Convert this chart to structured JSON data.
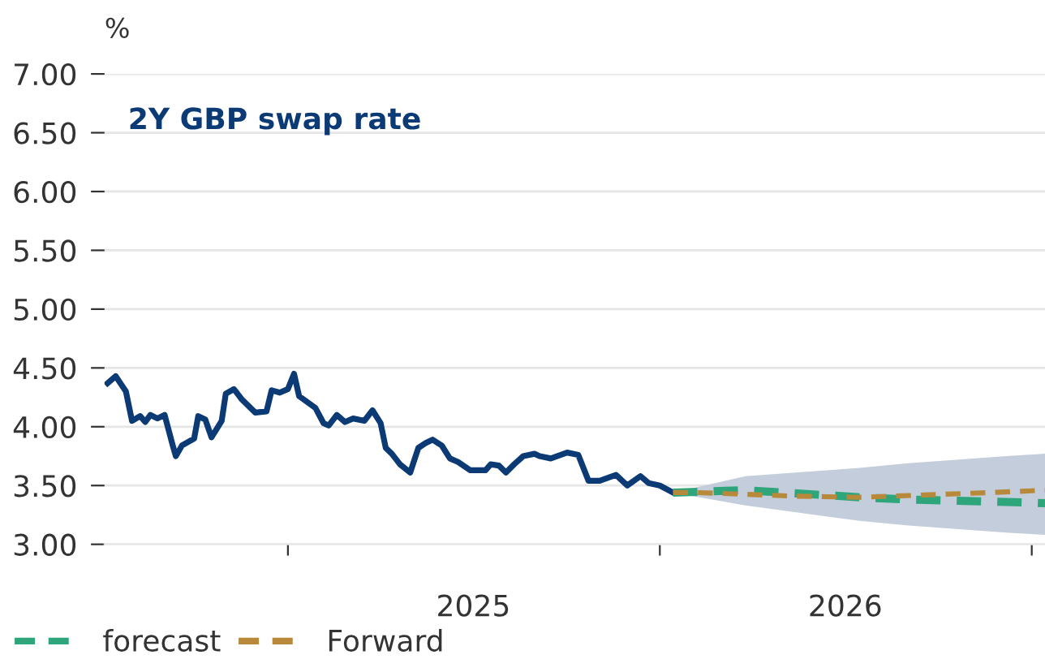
{
  "chart_data": {
    "type": "line",
    "title": "2Y GBP swap rate",
    "ylabel": "%",
    "xlim": [
      "2024-07-05",
      "2027-01-14"
    ],
    "xticks": [
      {
        "value": "2025-01-01",
        "label": null
      },
      {
        "value": "2025-07-02",
        "label": "2025"
      },
      {
        "value": "2026-01-01",
        "label": null
      },
      {
        "value": "2026-07-02",
        "label": "2026"
      },
      {
        "value": "2027-01-01",
        "label": null
      }
    ],
    "ylim": [
      3.0,
      7.0
    ],
    "yticks": [
      {
        "value": 3.0,
        "label": "3.00"
      },
      {
        "value": 3.5,
        "label": "3.50"
      },
      {
        "value": 4.0,
        "label": "4.00"
      },
      {
        "value": 4.5,
        "label": "4.50"
      },
      {
        "value": 5.0,
        "label": "5.00"
      },
      {
        "value": 5.5,
        "label": "5.50"
      },
      {
        "value": 6.0,
        "label": "6.00"
      },
      {
        "value": 6.5,
        "label": "6.50"
      },
      {
        "value": 7.0,
        "label": "7.00"
      }
    ],
    "grid": "y",
    "legend": "bottom",
    "marker": "none",
    "series": [
      {
        "color": "#0b3a75",
        "line_style": "solid",
        "x": [
          "2024-07-08",
          "2024-07-16",
          "2024-07-26",
          "2024-08-01",
          "2024-08-09",
          "2024-08-14",
          "2024-08-19",
          "2024-08-26",
          "2024-09-02",
          "2024-09-10",
          "2024-09-13",
          "2024-09-19",
          "2024-10-01",
          "2024-10-05",
          "2024-10-12",
          "2024-10-18",
          "2024-10-28",
          "2024-11-01",
          "2024-11-09",
          "2024-11-17",
          "2024-11-30",
          "2024-12-11",
          "2024-12-16",
          "2024-12-24",
          "2025-01-01",
          "2025-01-07",
          "2025-01-12",
          "2025-01-28",
          "2025-02-05",
          "2025-02-10",
          "2025-02-18",
          "2025-02-26",
          "2025-03-06",
          "2025-03-17",
          "2025-03-25",
          "2025-04-02",
          "2025-04-07",
          "2025-04-13",
          "2025-04-21",
          "2025-05-01",
          "2025-05-09",
          "2025-05-16",
          "2025-05-23",
          "2025-06-01",
          "2025-06-09",
          "2025-06-17",
          "2025-06-29",
          "2025-07-14",
          "2025-07-19",
          "2025-07-27",
          "2025-08-03",
          "2025-08-11",
          "2025-08-20",
          "2025-08-31",
          "2025-09-05",
          "2025-09-16",
          "2025-10-02",
          "2025-10-13",
          "2025-10-23",
          "2025-11-03",
          "2025-11-19",
          "2025-11-30",
          "2025-12-13",
          "2025-12-21",
          "2026-01-01",
          "2026-01-14"
        ],
        "values": [
          4.37,
          4.43,
          4.3,
          4.05,
          4.09,
          4.04,
          4.1,
          4.07,
          4.1,
          3.84,
          3.75,
          3.84,
          3.9,
          4.09,
          4.06,
          3.91,
          4.05,
          4.28,
          4.32,
          4.23,
          4.12,
          4.13,
          4.31,
          4.29,
          4.32,
          4.45,
          4.26,
          4.16,
          4.03,
          4.01,
          4.1,
          4.04,
          4.07,
          4.05,
          4.14,
          4.03,
          3.82,
          3.77,
          3.68,
          3.61,
          3.82,
          3.86,
          3.89,
          3.84,
          3.73,
          3.7,
          3.63,
          3.63,
          3.68,
          3.67,
          3.61,
          3.68,
          3.75,
          3.77,
          3.75,
          3.73,
          3.78,
          3.76,
          3.54,
          3.54,
          3.59,
          3.5,
          3.58,
          3.52,
          3.5,
          3.44
        ]
      },
      {
        "name": "forecast",
        "color": "#2ea57a",
        "line_style": "dashed",
        "x": [
          "2026-01-14",
          "2026-03-26",
          "2026-07-16",
          "2026-09-02",
          "2026-12-07",
          "2027-01-14"
        ],
        "values": [
          3.44,
          3.46,
          3.4,
          3.38,
          3.36,
          3.35
        ],
        "lower": [
          3.44,
          3.33,
          3.2,
          3.16,
          3.1,
          3.08
        ],
        "upper": [
          3.44,
          3.58,
          3.65,
          3.69,
          3.75,
          3.77
        ]
      },
      {
        "name": "Forward",
        "color": "#b8893a",
        "line_style": "dashed",
        "x": [
          "2026-01-14",
          "2026-02-07",
          "2026-05-13",
          "2026-07-16",
          "2026-09-18",
          "2026-11-21",
          "2027-01-14"
        ],
        "values": [
          3.44,
          3.44,
          3.41,
          3.4,
          3.42,
          3.44,
          3.46
        ]
      }
    ]
  }
}
